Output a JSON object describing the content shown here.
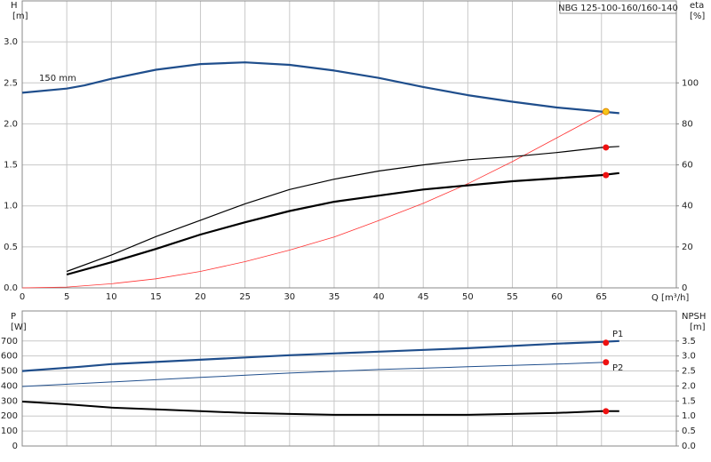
{
  "chart_data": [
    {
      "type": "line",
      "title": "NBG 125-100-160/160-140",
      "y_label": "H",
      "y_unit": "[m]",
      "y2_label": "eta",
      "y2_unit": "[%]",
      "x_label": "Q [m³/h]",
      "annotations": [
        "150 mm"
      ],
      "xlim": [
        0,
        73.4
      ],
      "xticks": [
        0,
        5,
        10,
        15,
        20,
        25,
        30,
        35,
        40,
        45,
        50,
        55,
        60,
        65
      ],
      "ylim": [
        0,
        3.5
      ],
      "yticks": [
        {
          "value": 0,
          "label": "0.0"
        },
        0.5,
        {
          "value": 1,
          "label": "1.0"
        },
        1.5,
        {
          "value": 2,
          "label": "2.0"
        },
        2.5,
        {
          "value": 3,
          "label": "3.0"
        }
      ],
      "y2lim": [
        0,
        140
      ],
      "y2ticks": [
        0,
        20,
        40,
        60,
        80,
        100
      ],
      "grid": true,
      "xtick_labels": true,
      "series": [
        {
          "color": "#1f4e8c",
          "width": 2.2,
          "axis": "y",
          "x": [
            0,
            5,
            7,
            10,
            15,
            20,
            25,
            30,
            35,
            40,
            45,
            50,
            55,
            60,
            65,
            67
          ],
          "values": [
            2.38,
            2.43,
            2.47,
            2.55,
            2.66,
            2.73,
            2.75,
            2.72,
            2.65,
            2.56,
            2.45,
            2.35,
            2.27,
            2.2,
            2.15,
            2.13
          ]
        },
        {
          "color": "#ff3333",
          "width": 0.8,
          "axis": "y",
          "x": [
            0,
            5,
            10,
            15,
            20,
            25,
            30,
            35,
            40,
            45,
            50,
            55,
            60,
            65.5
          ],
          "values": [
            0,
            0.01,
            0.05,
            0.11,
            0.2,
            0.32,
            0.46,
            0.62,
            0.82,
            1.03,
            1.27,
            1.54,
            1.83,
            2.15
          ]
        },
        {
          "color": "#000000",
          "width": 1.2,
          "axis": "y2",
          "x": [
            5,
            10,
            15,
            20,
            25,
            30,
            35,
            40,
            45,
            50,
            55,
            60,
            65,
            67
          ],
          "values": [
            8,
            16,
            25,
            33,
            41,
            48,
            53,
            57,
            60,
            62.5,
            64,
            66,
            68.5,
            69
          ]
        },
        {
          "color": "#000000",
          "width": 2.2,
          "axis": "y2",
          "x": [
            5,
            10,
            15,
            20,
            25,
            30,
            35,
            40,
            45,
            50,
            55,
            60,
            65,
            67
          ],
          "values": [
            6.5,
            12.5,
            19,
            26,
            32,
            37.5,
            42,
            45,
            48,
            50,
            52,
            53.5,
            55,
            56
          ]
        }
      ],
      "points": [
        {
          "x": 65.5,
          "y": 2.15,
          "axis": "y",
          "color": "#f5c518"
        },
        {
          "x": 65.5,
          "y": 68.5,
          "axis": "y2",
          "color": "#ee1111"
        },
        {
          "x": 65.5,
          "y": 55,
          "axis": "y2",
          "color": "#ee1111"
        }
      ]
    },
    {
      "type": "line",
      "y_label": "P",
      "y_unit": "[W]",
      "y2_label": "NPSH",
      "y2_unit": "[m]",
      "annotations": [
        "P1",
        "P2"
      ],
      "xlim": [
        0,
        73.4
      ],
      "xticks": [
        0,
        5,
        10,
        15,
        20,
        25,
        30,
        35,
        40,
        45,
        50,
        55,
        60,
        65
      ],
      "ylim": [
        0,
        900
      ],
      "yticks": [
        0,
        100,
        200,
        300,
        400,
        500,
        600,
        700
      ],
      "y2lim": [
        0,
        4.5
      ],
      "y2ticks": [
        {
          "value": 0,
          "label": "0.0"
        },
        0.5,
        {
          "value": 1,
          "label": "1.0"
        },
        1.5,
        {
          "value": 2,
          "label": "2.0"
        },
        2.5,
        {
          "value": 3,
          "label": "3.0"
        },
        3.5
      ],
      "grid": true,
      "xtick_labels": false,
      "series": [
        {
          "color": "#1f4e8c",
          "width": 2.2,
          "axis": "y",
          "x": [
            0,
            6.5,
            10,
            20,
            30,
            40,
            50,
            60,
            65,
            67
          ],
          "values": [
            500,
            528,
            546,
            575,
            605,
            629,
            652,
            682,
            694,
            700
          ]
        },
        {
          "color": "#1f4e8c",
          "width": 1,
          "axis": "y",
          "x": [
            0,
            10,
            20,
            30,
            40,
            50,
            60,
            65.5
          ],
          "values": [
            397,
            427,
            457,
            486,
            510,
            528,
            546,
            558
          ]
        },
        {
          "color": "#000000",
          "width": 2,
          "axis": "y2",
          "x": [
            0,
            5,
            10,
            15,
            20,
            25,
            30,
            35,
            40,
            45,
            50,
            55,
            60,
            65,
            67
          ],
          "values": [
            1.48,
            1.39,
            1.28,
            1.22,
            1.16,
            1.1,
            1.07,
            1.04,
            1.04,
            1.04,
            1.04,
            1.07,
            1.1,
            1.16,
            1.16
          ]
        }
      ],
      "points": [
        {
          "x": 65.5,
          "y": 688,
          "axis": "y",
          "color": "#ee1111"
        },
        {
          "x": 65.5,
          "y": 558,
          "axis": "y",
          "color": "#ee1111"
        },
        {
          "x": 65.5,
          "y": 1.16,
          "axis": "y2",
          "color": "#ee1111"
        }
      ]
    }
  ]
}
